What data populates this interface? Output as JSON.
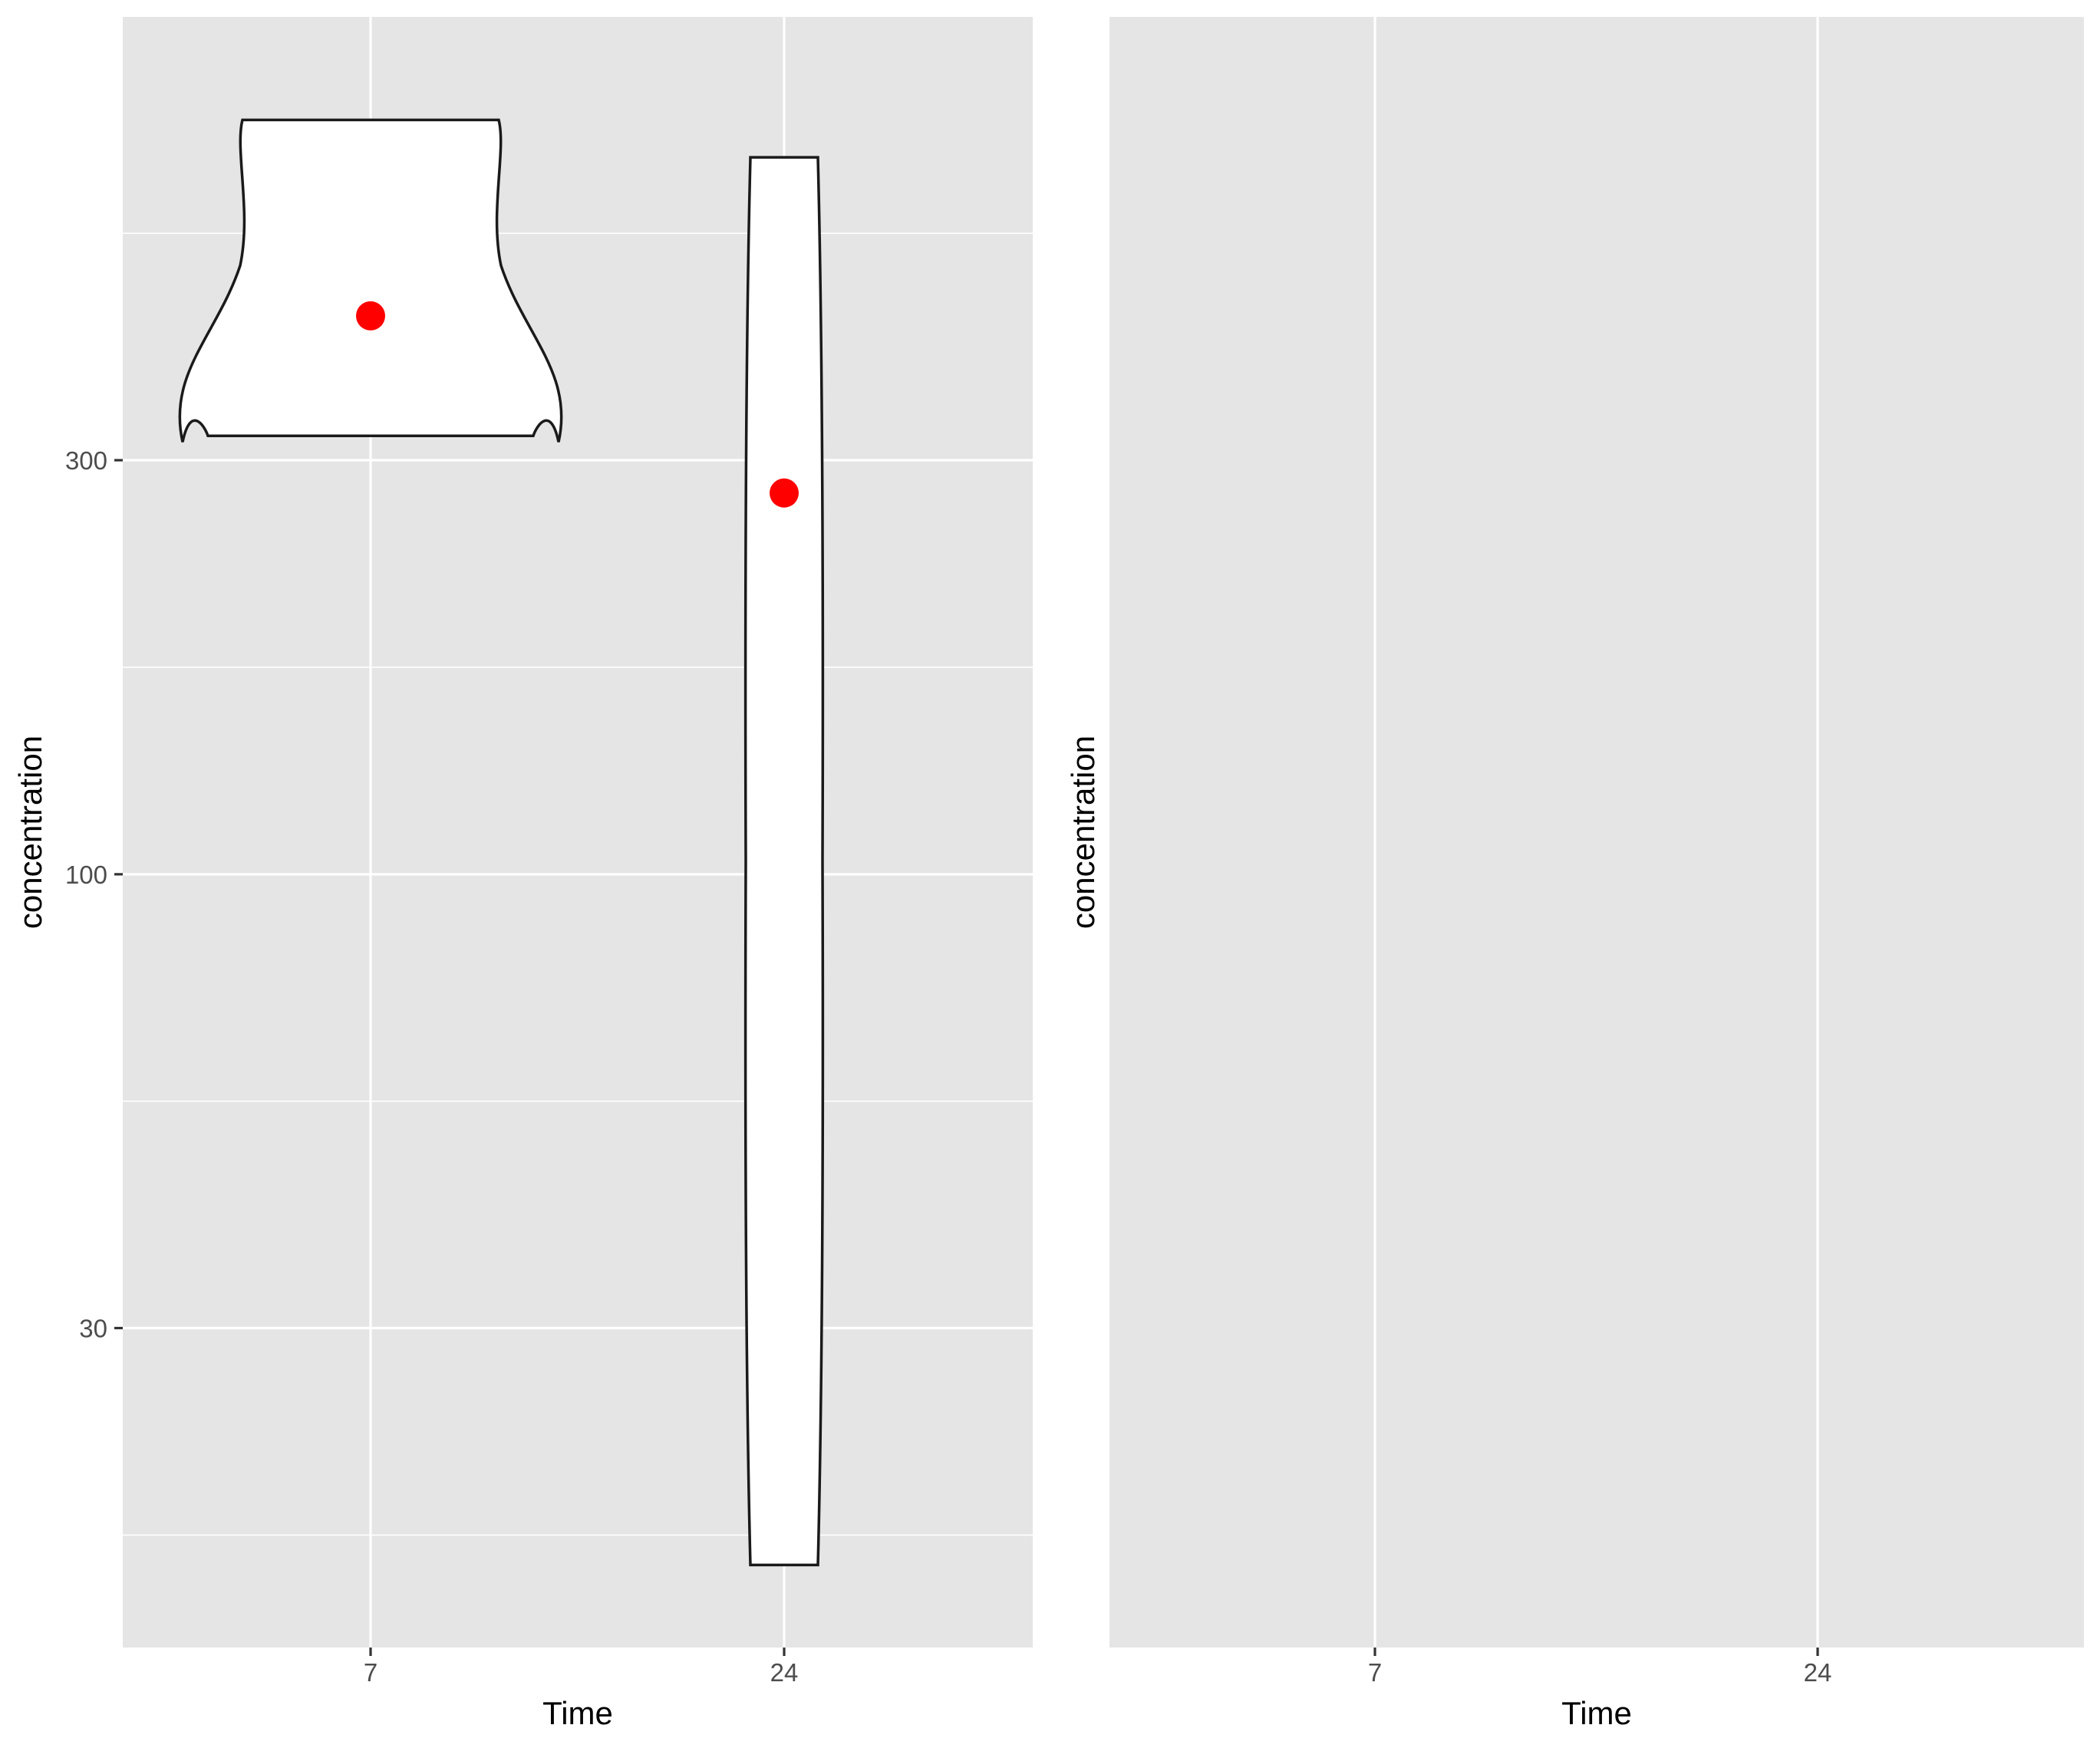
{
  "chart_data": [
    {
      "type": "violin",
      "xlabel": "Time",
      "ylabel": "concentration",
      "y_scale": "log10",
      "categories": [
        "7",
        "24"
      ],
      "yticks": [
        30,
        100,
        300
      ],
      "ylim": [
        14,
        800
      ],
      "grid": true,
      "violins": [
        {
          "category": "7",
          "min": 320,
          "max": 740,
          "mean": 440
        },
        {
          "category": "24",
          "min": 16,
          "max": 670,
          "mean": 275
        }
      ],
      "point_color": "#ff0000"
    },
    {
      "type": "violin",
      "xlabel": "Time",
      "ylabel": "concentration",
      "categories": [
        "7",
        "24"
      ],
      "grid": true,
      "violins": []
    }
  ]
}
